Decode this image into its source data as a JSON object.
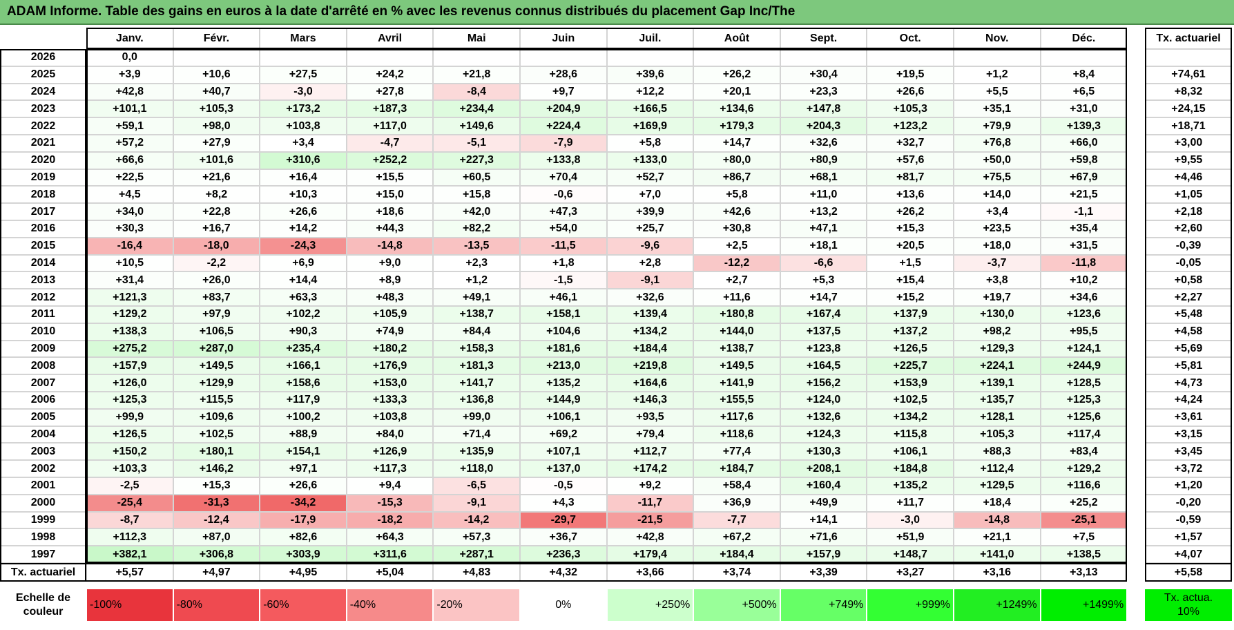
{
  "title": "ADAM Informe. Table des gains en euros à la date d'arrêté en % avec les revenus connus distribués du placement Gap Inc/The",
  "table": {
    "columns": [
      "Janv.",
      "Févr.",
      "Mars",
      "Avril",
      "Mai",
      "Juin",
      "Juil.",
      "Août",
      "Sept.",
      "Oct.",
      "Nov.",
      "Déc."
    ],
    "tx_header": "Tx. actuariel",
    "rows": [
      {
        "year": "2026",
        "values": [
          "0,0"
        ]
      },
      {
        "year": "2025",
        "values": [
          "+3,9",
          "+10,6",
          "+27,5",
          "+24,2",
          "+21,8",
          "+28,6",
          "+39,6",
          "+26,2",
          "+30,4",
          "+19,5",
          "+1,2",
          "+8,4"
        ],
        "tx": "+74,61"
      },
      {
        "year": "2024",
        "values": [
          "+42,8",
          "+40,7",
          "-3,0",
          "+27,8",
          "-8,4",
          "+9,7",
          "+12,2",
          "+20,1",
          "+23,3",
          "+26,6",
          "+5,5",
          "+6,5"
        ],
        "tx": "+8,32"
      },
      {
        "year": "2023",
        "values": [
          "+101,1",
          "+105,3",
          "+173,2",
          "+187,3",
          "+234,4",
          "+204,9",
          "+166,5",
          "+134,6",
          "+147,8",
          "+105,3",
          "+35,1",
          "+31,0"
        ],
        "tx": "+24,15"
      },
      {
        "year": "2022",
        "values": [
          "+59,1",
          "+98,0",
          "+103,8",
          "+117,0",
          "+149,6",
          "+224,4",
          "+169,9",
          "+179,3",
          "+204,3",
          "+123,2",
          "+79,9",
          "+139,3"
        ],
        "tx": "+18,71"
      },
      {
        "year": "2021",
        "values": [
          "+57,2",
          "+27,9",
          "+3,4",
          "-4,7",
          "-5,1",
          "-7,9",
          "+5,8",
          "+14,7",
          "+32,6",
          "+32,7",
          "+76,8",
          "+66,0"
        ],
        "tx": "+3,00"
      },
      {
        "year": "2020",
        "values": [
          "+66,6",
          "+101,6",
          "+310,6",
          "+252,2",
          "+227,3",
          "+133,8",
          "+133,0",
          "+80,0",
          "+80,9",
          "+57,6",
          "+50,0",
          "+59,8"
        ],
        "tx": "+9,55"
      },
      {
        "year": "2019",
        "values": [
          "+22,5",
          "+21,6",
          "+16,4",
          "+15,5",
          "+60,5",
          "+70,4",
          "+52,7",
          "+86,7",
          "+68,1",
          "+81,7",
          "+75,5",
          "+67,9"
        ],
        "tx": "+4,46"
      },
      {
        "year": "2018",
        "values": [
          "+4,5",
          "+8,2",
          "+10,3",
          "+15,0",
          "+15,8",
          "-0,6",
          "+7,0",
          "+5,8",
          "+11,0",
          "+13,6",
          "+14,0",
          "+21,5"
        ],
        "tx": "+1,05"
      },
      {
        "year": "2017",
        "values": [
          "+34,0",
          "+22,8",
          "+26,6",
          "+18,6",
          "+42,0",
          "+47,3",
          "+39,9",
          "+42,6",
          "+13,2",
          "+26,2",
          "+3,4",
          "-1,1"
        ],
        "tx": "+2,18"
      },
      {
        "year": "2016",
        "values": [
          "+30,3",
          "+16,7",
          "+14,2",
          "+44,3",
          "+82,2",
          "+54,0",
          "+25,7",
          "+30,8",
          "+47,1",
          "+15,3",
          "+23,5",
          "+35,4"
        ],
        "tx": "+2,60"
      },
      {
        "year": "2015",
        "values": [
          "-16,4",
          "-18,0",
          "-24,3",
          "-14,8",
          "-13,5",
          "-11,5",
          "-9,6",
          "+2,5",
          "+18,1",
          "+20,5",
          "+18,0",
          "+31,5"
        ],
        "tx": "-0,39"
      },
      {
        "year": "2014",
        "values": [
          "+10,5",
          "-2,2",
          "+6,9",
          "+9,0",
          "+2,3",
          "+1,8",
          "+2,8",
          "-12,2",
          "-6,6",
          "+1,5",
          "-3,7",
          "-11,8"
        ],
        "tx": "-0,05"
      },
      {
        "year": "2013",
        "values": [
          "+31,4",
          "+26,0",
          "+14,4",
          "+8,9",
          "+1,2",
          "-1,5",
          "-9,1",
          "+2,7",
          "+5,3",
          "+15,4",
          "+3,8",
          "+10,2"
        ],
        "tx": "+0,58"
      },
      {
        "year": "2012",
        "values": [
          "+121,3",
          "+83,7",
          "+63,3",
          "+48,3",
          "+49,1",
          "+46,1",
          "+32,6",
          "+11,6",
          "+14,7",
          "+15,2",
          "+19,7",
          "+34,6"
        ],
        "tx": "+2,27"
      },
      {
        "year": "2011",
        "values": [
          "+129,2",
          "+97,9",
          "+102,2",
          "+105,9",
          "+138,7",
          "+158,1",
          "+139,4",
          "+180,8",
          "+167,4",
          "+137,9",
          "+130,0",
          "+123,6"
        ],
        "tx": "+5,48"
      },
      {
        "year": "2010",
        "values": [
          "+138,3",
          "+106,5",
          "+90,3",
          "+74,9",
          "+84,4",
          "+104,6",
          "+134,2",
          "+144,0",
          "+137,5",
          "+137,2",
          "+98,2",
          "+95,5"
        ],
        "tx": "+4,58"
      },
      {
        "year": "2009",
        "values": [
          "+275,2",
          "+287,0",
          "+235,4",
          "+180,2",
          "+158,3",
          "+181,6",
          "+184,4",
          "+138,7",
          "+123,8",
          "+126,5",
          "+129,3",
          "+124,1"
        ],
        "tx": "+5,69"
      },
      {
        "year": "2008",
        "values": [
          "+157,9",
          "+149,5",
          "+166,1",
          "+176,9",
          "+181,3",
          "+213,0",
          "+219,8",
          "+149,5",
          "+164,5",
          "+225,7",
          "+224,1",
          "+244,9"
        ],
        "tx": "+5,81"
      },
      {
        "year": "2007",
        "values": [
          "+126,0",
          "+129,9",
          "+158,6",
          "+153,0",
          "+141,7",
          "+135,2",
          "+164,6",
          "+141,9",
          "+156,2",
          "+153,9",
          "+139,1",
          "+128,5"
        ],
        "tx": "+4,73"
      },
      {
        "year": "2006",
        "values": [
          "+125,3",
          "+115,5",
          "+117,9",
          "+133,3",
          "+136,8",
          "+144,9",
          "+146,3",
          "+155,5",
          "+124,0",
          "+102,5",
          "+135,7",
          "+125,3"
        ],
        "tx": "+4,24"
      },
      {
        "year": "2005",
        "values": [
          "+99,9",
          "+109,6",
          "+100,2",
          "+103,8",
          "+99,0",
          "+106,1",
          "+93,5",
          "+117,6",
          "+132,6",
          "+134,2",
          "+128,1",
          "+125,6"
        ],
        "tx": "+3,61"
      },
      {
        "year": "2004",
        "values": [
          "+126,5",
          "+102,5",
          "+88,9",
          "+84,0",
          "+71,4",
          "+69,2",
          "+79,4",
          "+118,6",
          "+124,3",
          "+115,8",
          "+105,3",
          "+117,4"
        ],
        "tx": "+3,15"
      },
      {
        "year": "2003",
        "values": [
          "+150,2",
          "+180,1",
          "+154,1",
          "+126,9",
          "+135,9",
          "+107,1",
          "+112,7",
          "+77,4",
          "+130,3",
          "+106,1",
          "+88,3",
          "+83,4"
        ],
        "tx": "+3,45"
      },
      {
        "year": "2002",
        "values": [
          "+103,3",
          "+146,2",
          "+97,1",
          "+117,3",
          "+118,0",
          "+137,0",
          "+174,2",
          "+184,7",
          "+208,1",
          "+184,8",
          "+112,4",
          "+129,2"
        ],
        "tx": "+3,72"
      },
      {
        "year": "2001",
        "values": [
          "-2,5",
          "+15,3",
          "+26,6",
          "+9,4",
          "-6,5",
          "-0,5",
          "+9,2",
          "+58,4",
          "+160,4",
          "+135,2",
          "+129,5",
          "+116,6"
        ],
        "tx": "+1,20"
      },
      {
        "year": "2000",
        "values": [
          "-25,4",
          "-31,3",
          "-34,2",
          "-15,3",
          "-9,1",
          "+4,3",
          "-11,7",
          "+36,9",
          "+49,9",
          "+11,7",
          "+18,4",
          "+25,2"
        ],
        "tx": "-0,20"
      },
      {
        "year": "1999",
        "values": [
          "-8,7",
          "-12,4",
          "-17,9",
          "-18,2",
          "-14,2",
          "-29,7",
          "-21,5",
          "-7,7",
          "+14,1",
          "-3,0",
          "-14,8",
          "-25,1"
        ],
        "tx": "-0,59"
      },
      {
        "year": "1998",
        "values": [
          "+112,3",
          "+87,0",
          "+82,6",
          "+64,3",
          "+57,3",
          "+36,7",
          "+42,8",
          "+67,2",
          "+71,6",
          "+51,9",
          "+21,1",
          "+7,5"
        ],
        "tx": "+1,57"
      },
      {
        "year": "1997",
        "values": [
          "+382,1",
          "+306,8",
          "+303,9",
          "+311,6",
          "+287,1",
          "+236,3",
          "+179,4",
          "+184,4",
          "+157,9",
          "+148,7",
          "+141,0",
          "+138,5"
        ],
        "tx": "+4,07"
      }
    ],
    "footer": {
      "label": "Tx. actuariel",
      "values": [
        "+5,57",
        "+4,97",
        "+4,95",
        "+5,04",
        "+4,83",
        "+4,32",
        "+3,66",
        "+3,74",
        "+3,39",
        "+3,27",
        "+3,16",
        "+3,13"
      ],
      "tx": "+5,58"
    }
  },
  "legend": {
    "label": "Echelle de couleur",
    "scale": [
      "-100%",
      "-80%",
      "-60%",
      "-40%",
      "-20%",
      "0%",
      "+250%",
      "+500%",
      "+749%",
      "+999%",
      "+1249%",
      "+1499%"
    ],
    "tx_label": "Tx. actua. 10%"
  }
}
